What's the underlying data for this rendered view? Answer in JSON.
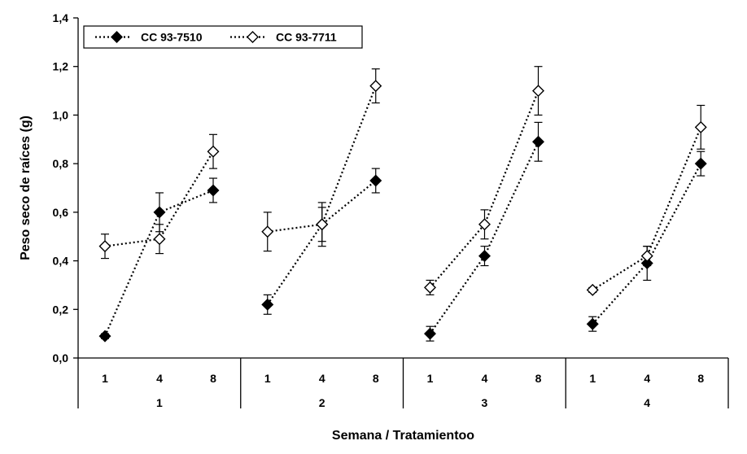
{
  "chart_data": {
    "type": "line",
    "title": "",
    "xlabel": "Semana / Tratamientoo",
    "ylabel": "Peso seco de raíces (g)",
    "ylim": [
      0,
      1.4
    ],
    "yticks": [
      "0,0",
      "0,2",
      "0,4",
      "0,6",
      "0,8",
      "1,0",
      "1,2",
      "1,4"
    ],
    "grid": false,
    "legend_position": "top-left",
    "groups": [
      {
        "label": "1",
        "categories": [
          "1",
          "4",
          "8"
        ]
      },
      {
        "label": "2",
        "categories": [
          "1",
          "4",
          "8"
        ]
      },
      {
        "label": "3",
        "categories": [
          "1",
          "4",
          "8"
        ]
      },
      {
        "label": "4",
        "categories": [
          "1",
          "4",
          "8"
        ]
      }
    ],
    "series": [
      {
        "name": "CC 93-7510",
        "marker": "filled-diamond",
        "color": "#000000",
        "values": [
          [
            0.09,
            0.6,
            0.69
          ],
          [
            0.22,
            0.55,
            0.73
          ],
          [
            0.1,
            0.42,
            0.89
          ],
          [
            0.14,
            0.39,
            0.8
          ]
        ],
        "errors": [
          [
            0.01,
            0.08,
            0.05
          ],
          [
            0.04,
            0.07,
            0.05
          ],
          [
            0.03,
            0.04,
            0.08
          ],
          [
            0.03,
            0.07,
            0.05
          ]
        ]
      },
      {
        "name": "CC 93-7711",
        "marker": "open-diamond",
        "color": "#000000",
        "values": [
          [
            0.46,
            0.49,
            0.85
          ],
          [
            0.52,
            0.55,
            1.12
          ],
          [
            0.29,
            0.55,
            1.1
          ],
          [
            0.28,
            0.42,
            0.95
          ]
        ],
        "errors": [
          [
            0.05,
            0.06,
            0.07
          ],
          [
            0.08,
            0.09,
            0.07
          ],
          [
            0.03,
            0.06,
            0.1
          ],
          [
            0.01,
            0.04,
            0.09
          ]
        ]
      }
    ]
  }
}
